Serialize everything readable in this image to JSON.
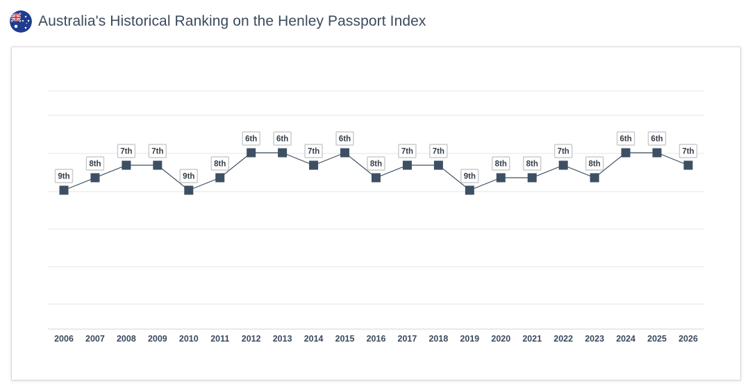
{
  "page": {
    "title": "Australia's Historical Ranking on the Henley Passport Index",
    "flag_icon": "australia-flag-icon"
  },
  "colors": {
    "title": "#3b4a5c",
    "line": "#3d4f63",
    "marker": "#3d4f63",
    "grid": "#e6e6e6",
    "label_border": "#cccccc",
    "axis_text": "#3b4a5c"
  },
  "chart_data": {
    "type": "line",
    "title": "",
    "xlabel": "",
    "ylabel": "",
    "grid": true,
    "y_axis": "inverted rank, 1 at top",
    "ylim": [
      1,
      19
    ],
    "categories": [
      "2006",
      "2007",
      "2008",
      "2009",
      "2010",
      "2011",
      "2012",
      "2013",
      "2014",
      "2015",
      "2016",
      "2017",
      "2018",
      "2019",
      "2020",
      "2021",
      "2022",
      "2023",
      "2024",
      "2025",
      "2026"
    ],
    "series": [
      {
        "values": [
          9,
          8,
          7,
          7,
          9,
          8,
          6,
          6,
          7,
          6,
          8,
          7,
          7,
          9,
          8,
          8,
          7,
          8,
          6,
          6,
          7
        ],
        "labels": [
          "9th",
          "8th",
          "7th",
          "7th",
          "9th",
          "8th",
          "6th",
          "6th",
          "7th",
          "6th",
          "8th",
          "7th",
          "7th",
          "9th",
          "8th",
          "8th",
          "7th",
          "8th",
          "6th",
          "6th",
          "7th"
        ]
      }
    ]
  }
}
